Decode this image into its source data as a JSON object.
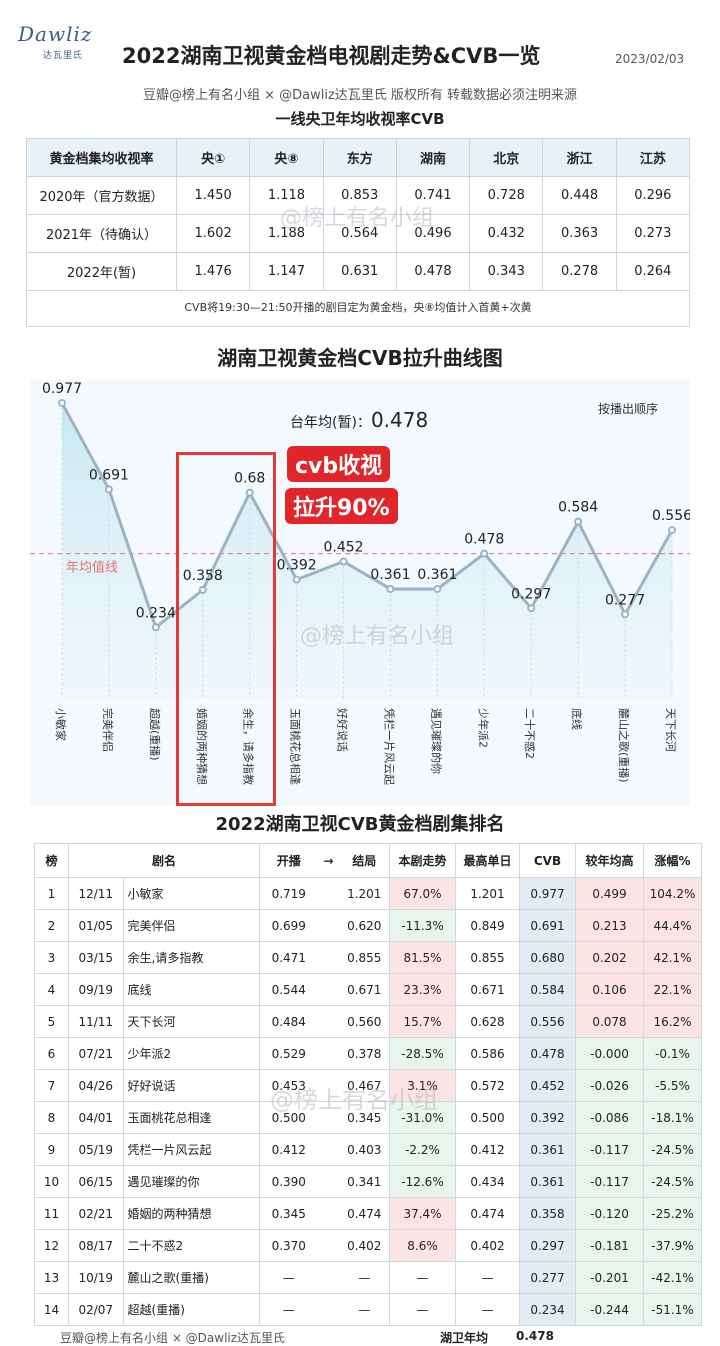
{
  "header": {
    "logo_main": "Dawliz",
    "logo_sub": "达瓦里氏",
    "title": "2022湖南卫视黄金档电视剧走势&CVB一览",
    "date": "2023/02/03",
    "credit": "豆瓣@榜上有名小组 × @Dawliz达瓦里氏 版权所有 转载数据必须注明来源"
  },
  "table1": {
    "title": "一线央卫年均收视率CVB",
    "headers": [
      "黄金档集均收视率",
      "央①",
      "央⑧",
      "东方",
      "湖南",
      "北京",
      "浙江",
      "江苏"
    ],
    "rows": [
      [
        "2020年（官方数据）",
        "1.450",
        "1.118",
        "0.853",
        "0.741",
        "0.728",
        "0.448",
        "0.296"
      ],
      [
        "2021年（待确认）",
        "1.602",
        "1.188",
        "0.564",
        "0.496",
        "0.432",
        "0.363",
        "0.273"
      ],
      [
        "2022年(暂)",
        "1.476",
        "1.147",
        "0.631",
        "0.478",
        "0.343",
        "0.278",
        "0.264"
      ]
    ],
    "note": "CVB将19:30—21:50开播的剧目定为黄金档，央⑧均值计入首黄+次黄"
  },
  "watermark": "@榜上有名小组",
  "chart_meta": {
    "avg_label": "台年均(暂)：",
    "avg_value": "0.478",
    "order_note": "按播出顺序",
    "avg_line_label": "年均值线",
    "badge1": "cvb收视",
    "badge2": "拉升90%",
    "accent": "#e0252b",
    "line_color": "#9ab4c6",
    "fill_color": "#bfe6f0"
  },
  "chart_data": {
    "type": "area",
    "title": "湖南卫视黄金档CVB拉升曲线图",
    "categories": [
      "小敏家",
      "完美伴侣",
      "超越(重播)",
      "婚姻的两种猜想",
      "余生，请多指教",
      "玉面桃花总相逢",
      "好好说话",
      "凭栏一片风云起",
      "遇见璀璨的你",
      "少年派2",
      "二十不惑2",
      "底线",
      "麓山之歌(重播)",
      "天下长河"
    ],
    "values": [
      0.977,
      0.691,
      0.234,
      0.358,
      0.68,
      0.392,
      0.452,
      0.361,
      0.361,
      0.478,
      0.297,
      0.584,
      0.277,
      0.556
    ],
    "reference_line": 0.478,
    "grid": false
  },
  "table2": {
    "title": "2022湖南卫视CVB黄金档剧集排名",
    "headers": [
      "榜",
      "剧名",
      "开播",
      "→",
      "结局",
      "本剧走势",
      "最高单日",
      "CVB",
      "较年均高",
      "涨幅%"
    ],
    "rows": [
      [
        "1",
        "12/11",
        "小敏家",
        "0.719",
        "1.201",
        "67.0%",
        "1.201",
        "0.977",
        "0.499",
        "104.2%"
      ],
      [
        "2",
        "01/05",
        "完美伴侣",
        "0.699",
        "0.620",
        "-11.3%",
        "0.849",
        "0.691",
        "0.213",
        "44.4%"
      ],
      [
        "3",
        "03/15",
        "余生,请多指教",
        "0.471",
        "0.855",
        "81.5%",
        "0.855",
        "0.680",
        "0.202",
        "42.1%"
      ],
      [
        "4",
        "09/19",
        "底线",
        "0.544",
        "0.671",
        "23.3%",
        "0.671",
        "0.584",
        "0.106",
        "22.1%"
      ],
      [
        "5",
        "11/11",
        "天下长河",
        "0.484",
        "0.560",
        "15.7%",
        "0.628",
        "0.556",
        "0.078",
        "16.2%"
      ],
      [
        "6",
        "07/21",
        "少年派2",
        "0.529",
        "0.378",
        "-28.5%",
        "0.586",
        "0.478",
        "-0.000",
        "-0.1%"
      ],
      [
        "7",
        "04/26",
        "好好说话",
        "0.453",
        "0.467",
        "3.1%",
        "0.572",
        "0.452",
        "-0.026",
        "-5.5%"
      ],
      [
        "8",
        "04/01",
        "玉面桃花总相逢",
        "0.500",
        "0.345",
        "-31.0%",
        "0.500",
        "0.392",
        "-0.086",
        "-18.1%"
      ],
      [
        "9",
        "05/19",
        "凭栏一片风云起",
        "0.412",
        "0.403",
        "-2.2%",
        "0.412",
        "0.361",
        "-0.117",
        "-24.5%"
      ],
      [
        "10",
        "06/15",
        "遇见璀璨的你",
        "0.390",
        "0.341",
        "-12.6%",
        "0.434",
        "0.361",
        "-0.117",
        "-24.5%"
      ],
      [
        "11",
        "02/21",
        "婚姻的两种猜想",
        "0.345",
        "0.474",
        "37.4%",
        "0.474",
        "0.358",
        "-0.120",
        "-25.2%"
      ],
      [
        "12",
        "08/17",
        "二十不惑2",
        "0.370",
        "0.402",
        "8.6%",
        "0.402",
        "0.297",
        "-0.181",
        "-37.9%"
      ],
      [
        "13",
        "10/19",
        "麓山之歌(重播)",
        "—",
        "—",
        "—",
        "—",
        "0.277",
        "-0.201",
        "-42.1%"
      ],
      [
        "14",
        "02/07",
        "超越(重播)",
        "—",
        "—",
        "—",
        "—",
        "0.234",
        "-0.244",
        "-51.1%"
      ]
    ],
    "footer_credit": "豆瓣@榜上有名小组 × @Dawliz达瓦里氏",
    "footer_avg_label": "湖卫年均",
    "footer_avg_value": "0.478"
  }
}
